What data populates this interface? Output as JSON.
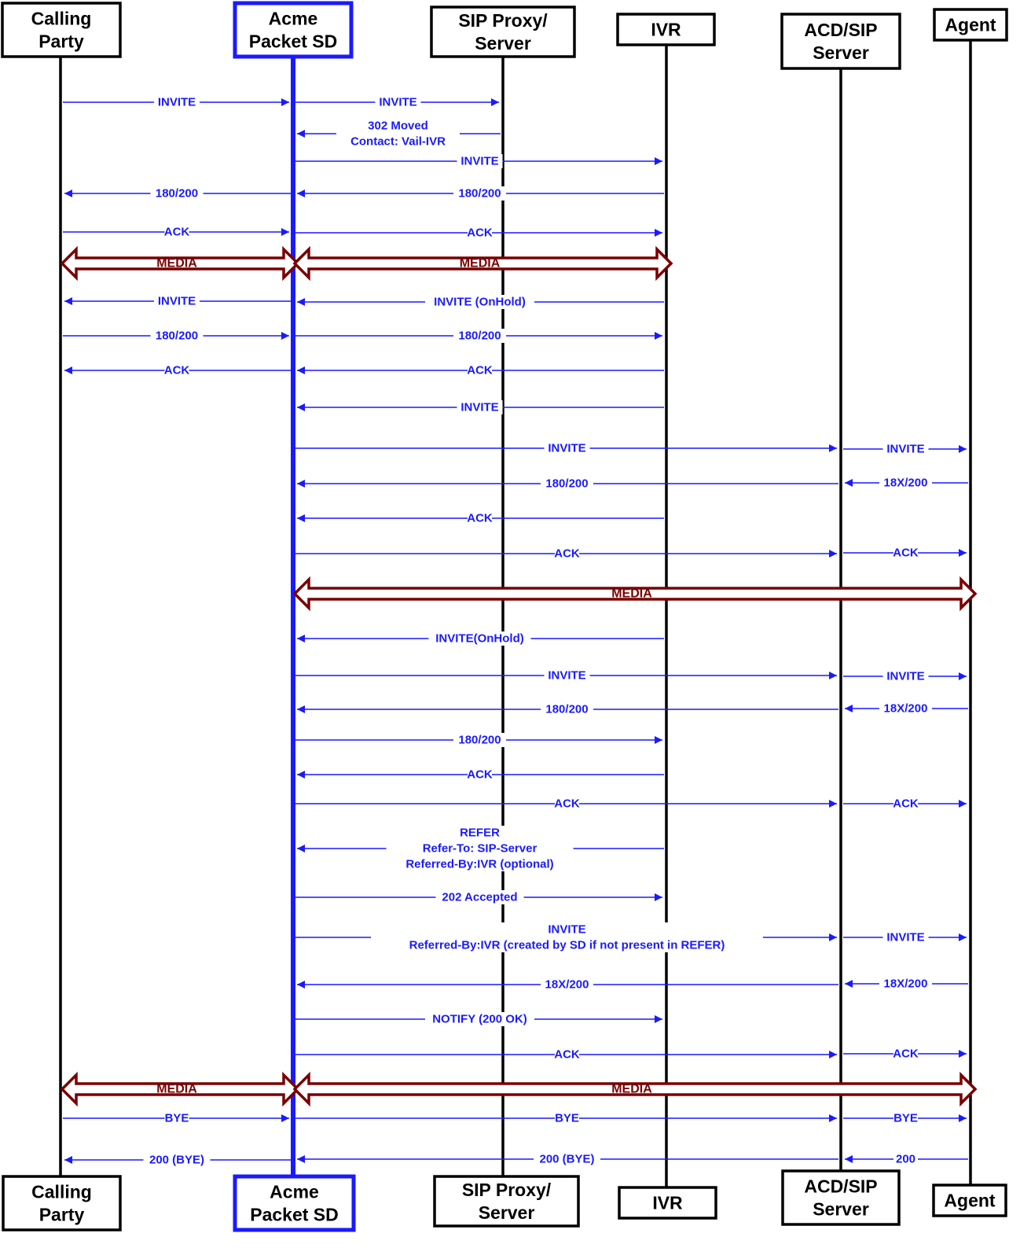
{
  "participants": [
    {
      "id": "caller",
      "lines": [
        "Calling",
        "Party"
      ]
    },
    {
      "id": "sd",
      "lines": [
        "Acme",
        "Packet SD"
      ]
    },
    {
      "id": "proxy",
      "lines": [
        "SIP Proxy/",
        "Server"
      ]
    },
    {
      "id": "ivr",
      "lines": [
        "IVR"
      ]
    },
    {
      "id": "acd",
      "lines": [
        "ACD/SIP",
        "Server"
      ]
    },
    {
      "id": "agent",
      "lines": [
        "Agent"
      ]
    }
  ],
  "messages": [
    {
      "from": "caller",
      "to": "sd",
      "label": [
        "INVITE"
      ]
    },
    {
      "from": "sd",
      "to": "proxy",
      "label": [
        "INVITE"
      ]
    },
    {
      "from": "proxy",
      "to": "sd",
      "label": [
        "302 Moved",
        "Contact: Vail-IVR"
      ]
    },
    {
      "from": "sd",
      "to": "ivr",
      "label": [
        "INVITE"
      ]
    },
    {
      "from": "ivr",
      "to": "sd",
      "label": [
        "180/200"
      ]
    },
    {
      "from": "sd",
      "to": "caller",
      "label": [
        "180/200"
      ]
    },
    {
      "from": "caller",
      "to": "sd",
      "label": [
        "ACK"
      ]
    },
    {
      "from": "sd",
      "to": "ivr",
      "label": [
        "ACK"
      ]
    },
    {
      "type": "media",
      "from": "caller",
      "to": "sd",
      "label": "MEDIA"
    },
    {
      "type": "media",
      "from": "sd",
      "to": "ivr",
      "label": "MEDIA"
    },
    {
      "from": "sd",
      "to": "caller",
      "label": [
        "INVITE"
      ]
    },
    {
      "from": "ivr",
      "to": "sd",
      "label": [
        "INVITE (OnHold)"
      ]
    },
    {
      "from": "caller",
      "to": "sd",
      "label": [
        "180/200"
      ]
    },
    {
      "from": "sd",
      "to": "ivr",
      "label": [
        "180/200"
      ]
    },
    {
      "from": "sd",
      "to": "caller",
      "label": [
        "ACK"
      ]
    },
    {
      "from": "ivr",
      "to": "sd",
      "label": [
        "ACK"
      ]
    },
    {
      "from": "ivr",
      "to": "sd",
      "label": [
        "INVITE"
      ]
    },
    {
      "from": "sd",
      "to": "acd",
      "label": [
        "INVITE"
      ]
    },
    {
      "from": "acd",
      "to": "agent",
      "label": [
        "INVITE"
      ]
    },
    {
      "from": "acd",
      "to": "sd",
      "label": [
        "180/200"
      ]
    },
    {
      "from": "agent",
      "to": "acd",
      "label": [
        "18X/200"
      ]
    },
    {
      "from": "ivr",
      "to": "sd",
      "label": [
        "ACK"
      ]
    },
    {
      "from": "sd",
      "to": "acd",
      "label": [
        "ACK"
      ]
    },
    {
      "from": "acd",
      "to": "agent",
      "label": [
        "ACK"
      ]
    },
    {
      "type": "media",
      "from": "sd",
      "to": "agent",
      "label": "MEDIA"
    },
    {
      "from": "ivr",
      "to": "sd",
      "label": [
        "INVITE(OnHold)"
      ]
    },
    {
      "from": "sd",
      "to": "acd",
      "label": [
        "INVITE"
      ]
    },
    {
      "from": "acd",
      "to": "agent",
      "label": [
        "INVITE"
      ]
    },
    {
      "from": "acd",
      "to": "sd",
      "label": [
        "180/200"
      ]
    },
    {
      "from": "agent",
      "to": "acd",
      "label": [
        "18X/200"
      ]
    },
    {
      "from": "sd",
      "to": "ivr",
      "label": [
        "180/200"
      ]
    },
    {
      "from": "ivr",
      "to": "sd",
      "label": [
        "ACK"
      ]
    },
    {
      "from": "sd",
      "to": "acd",
      "label": [
        "ACK"
      ]
    },
    {
      "from": "acd",
      "to": "agent",
      "label": [
        "ACK"
      ]
    },
    {
      "from": "ivr",
      "to": "sd",
      "label": [
        "REFER",
        "Refer-To: SIP-Server",
        "Referred-By:IVR (optional)"
      ]
    },
    {
      "from": "sd",
      "to": "ivr",
      "label": [
        "202 Accepted"
      ]
    },
    {
      "from": "sd",
      "to": "acd",
      "label": [
        "INVITE",
        "Referred-By:IVR (created by SD if not present in REFER)"
      ]
    },
    {
      "from": "acd",
      "to": "agent",
      "label": [
        "INVITE"
      ]
    },
    {
      "from": "acd",
      "to": "sd",
      "label": [
        "18X/200"
      ]
    },
    {
      "from": "agent",
      "to": "acd",
      "label": [
        "18X/200"
      ]
    },
    {
      "from": "sd",
      "to": "ivr",
      "label": [
        "NOTIFY (200 OK)"
      ]
    },
    {
      "from": "sd",
      "to": "acd",
      "label": [
        "ACK"
      ]
    },
    {
      "from": "acd",
      "to": "agent",
      "label": [
        "ACK"
      ]
    },
    {
      "type": "media",
      "from": "caller",
      "to": "sd",
      "label": "MEDIA"
    },
    {
      "type": "media",
      "from": "sd",
      "to": "agent",
      "label": "MEDIA"
    },
    {
      "from": "caller",
      "to": "sd",
      "label": [
        "BYE"
      ]
    },
    {
      "from": "sd",
      "to": "acd",
      "label": [
        "BYE"
      ]
    },
    {
      "from": "acd",
      "to": "agent",
      "label": [
        "BYE"
      ]
    },
    {
      "from": "sd",
      "to": "caller",
      "label": [
        "200 (BYE)"
      ]
    },
    {
      "from": "acd",
      "to": "sd",
      "label": [
        "200 (BYE)"
      ]
    },
    {
      "from": "agent",
      "to": "acd",
      "label": [
        "200"
      ]
    }
  ],
  "colors": {
    "message": "#1a1aff",
    "media": "#7a0000",
    "highlight": "#1a1aff",
    "lifeline": "#000000"
  }
}
